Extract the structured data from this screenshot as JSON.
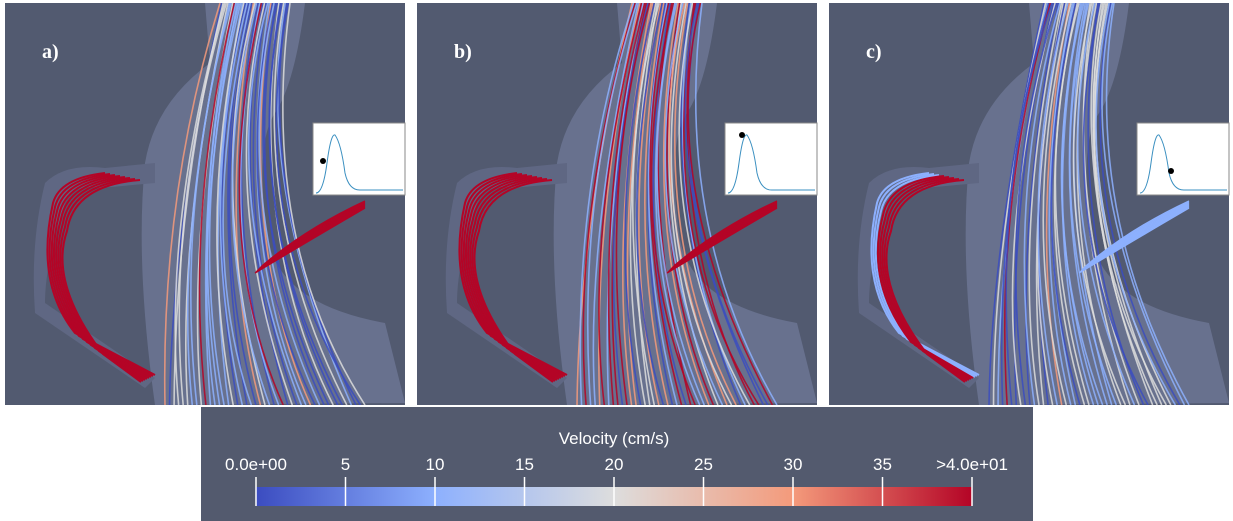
{
  "panels": [
    {
      "label": "a)"
    },
    {
      "label": "b)"
    },
    {
      "label": "c)"
    }
  ],
  "colorbar": {
    "title": "Velocity (cm/s)",
    "lim": [
      0,
      40
    ],
    "ticks": [
      {
        "value": 0,
        "label": "0.0e+00"
      },
      5,
      10,
      15,
      20,
      25,
      30,
      35,
      {
        "value": 40,
        "label": ">4.0e+01"
      }
    ],
    "colors": [
      "#3b4cc0",
      "#8db0fe",
      "#dddddd",
      "#f49a7b",
      "#b40426"
    ]
  }
}
